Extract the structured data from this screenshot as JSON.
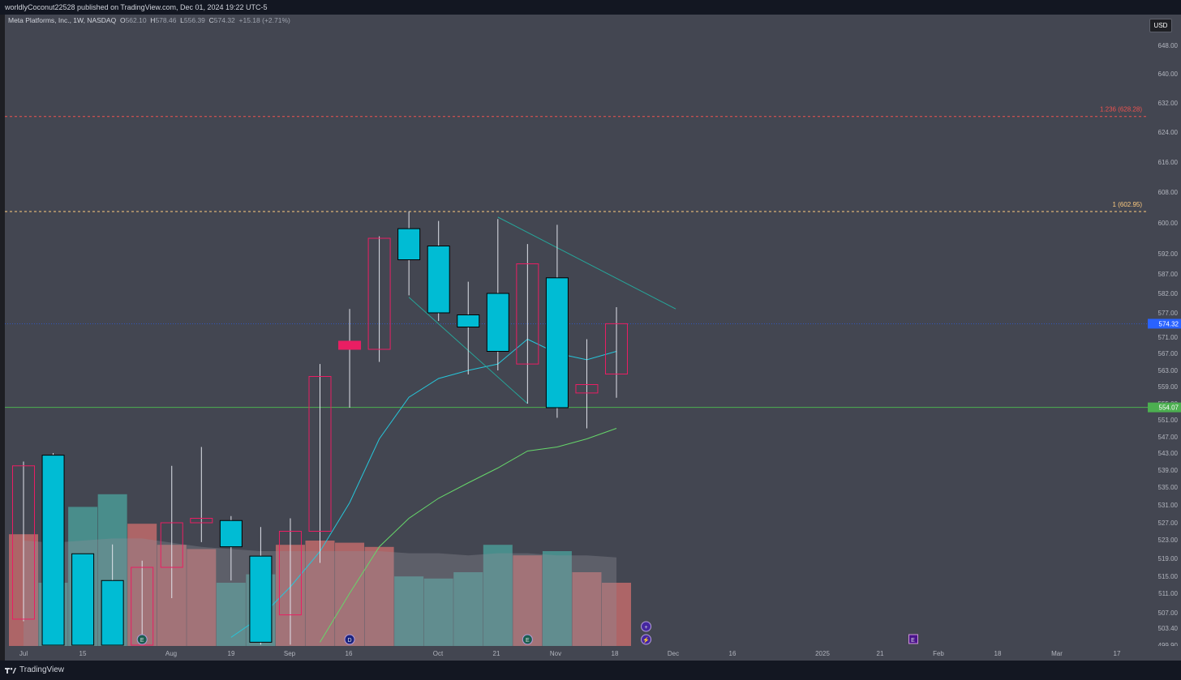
{
  "header": {
    "publish_line": "worldlyCoconut22528 published on TradingView.com, Dec 01, 2024 19:22 UTC-5"
  },
  "legend": {
    "symbol": "Meta Platforms, Inc., 1W, NASDAQ",
    "o_label": "O",
    "o_value": "562.10",
    "h_label": "H",
    "h_value": "578.46",
    "l_label": "L",
    "l_value": "556.39",
    "c_label": "C",
    "c_value": "574.32",
    "change": "+15.18 (+2.71%)"
  },
  "axis": {
    "currency": "USD"
  },
  "footer": {
    "brand": "TradingView"
  },
  "colors": {
    "background": "#434651",
    "bull_candle": "#00bcd4",
    "bear_candle": "#e91e63",
    "bull_volume": "#4a9a95",
    "bear_volume": "#c06b6b",
    "ema_fast": "#26c6da",
    "ema_slow": "#66d66a",
    "support_line": "#4caf50",
    "fib_1": "#ffcc80",
    "fib_1236": "#ef5350",
    "current_price": "#2962ff"
  },
  "chart_data": {
    "type": "candlestick",
    "title": "Meta Platforms, Inc., 1W, NASDAQ",
    "price_axis": {
      "ticks": [
        "648.00",
        "640.00",
        "632.00",
        "624.00",
        "616.00",
        "608.00",
        "600.00",
        "592.00",
        "587.00",
        "582.00",
        "577.00",
        "571.00",
        "567.00",
        "563.00",
        "559.00",
        "555.00",
        "551.00",
        "547.00",
        "543.00",
        "539.00",
        "535.00",
        "531.00",
        "527.00",
        "523.00",
        "519.00",
        "515.00",
        "511.00",
        "507.00",
        "503.40",
        "499.90"
      ]
    },
    "time_axis": {
      "ticks": [
        "Jul",
        "15",
        "Aug",
        "19",
        "Sep",
        "16",
        "Oct",
        "21",
        "Nov",
        "18",
        "Dec",
        "16",
        "2025",
        "21",
        "Feb",
        "18",
        "Mar",
        "17"
      ]
    },
    "candles": [
      {
        "bull": false,
        "open": 540.0,
        "high": 541.0,
        "low": 505.0,
        "close": 505.5
      },
      {
        "bull": true,
        "open": 499.9,
        "high": 543.0,
        "low": 499.9,
        "close": 542.5
      },
      {
        "bull": true,
        "open": 520.0,
        "high": 519.0,
        "low": 499.9,
        "close": 499.9
      },
      {
        "bull": true,
        "open": 514.0,
        "high": 522.0,
        "low": 499.9,
        "close": 499.9
      },
      {
        "bull": false,
        "open": 517.0,
        "high": 518.5,
        "low": 499.9,
        "close": 499.9
      },
      {
        "bull": false,
        "open": 527.0,
        "high": 540.0,
        "low": 510.0,
        "close": 517.0
      },
      {
        "bull": false,
        "open": 528.0,
        "high": 544.5,
        "low": 522.5,
        "close": 527.0
      },
      {
        "bull": true,
        "open": 521.5,
        "high": 528.5,
        "low": 514.0,
        "close": 527.5
      },
      {
        "bull": true,
        "open": 500.5,
        "high": 526.0,
        "low": 500.0,
        "close": 519.5
      },
      {
        "bull": false,
        "open": 525.0,
        "high": 528.0,
        "low": 500.0,
        "close": 506.5
      },
      {
        "bull": false,
        "open": 561.5,
        "high": 564.5,
        "low": 518.0,
        "close": 525.0
      },
      {
        "bull": false,
        "open": 570.0,
        "high": 578.0,
        "low": 554.0,
        "close": 568.0
      },
      {
        "bull": false,
        "open": 596.0,
        "high": 596.5,
        "low": 565.0,
        "close": 568.0
      },
      {
        "bull": true,
        "open": 590.5,
        "high": 603.0,
        "low": 581.5,
        "close": 598.5
      },
      {
        "bull": true,
        "open": 577.0,
        "high": 600.5,
        "low": 575.0,
        "close": 594.0
      },
      {
        "bull": true,
        "open": 573.5,
        "high": 585.0,
        "low": 562.0,
        "close": 576.5
      },
      {
        "bull": true,
        "open": 567.5,
        "high": 601.0,
        "low": 563.0,
        "close": 582.0
      },
      {
        "bull": false,
        "open": 564.5,
        "high": 594.5,
        "low": 555.0,
        "close": 589.5
      },
      {
        "bull": true,
        "open": 554.0,
        "high": 599.5,
        "low": 551.5,
        "close": 586.0
      },
      {
        "bull": false,
        "open": 557.5,
        "high": 570.5,
        "low": 549.0,
        "close": 559.5
      },
      {
        "bull": false,
        "open": 562.1,
        "high": 578.46,
        "low": 556.39,
        "close": 574.32
      }
    ],
    "ema_fast": [
      null,
      null,
      null,
      null,
      null,
      null,
      null,
      501.5,
      506.0,
      512.5,
      520.5,
      531.5,
      546.5,
      556.5,
      561.0,
      563.0,
      564.5,
      570.5,
      567.0,
      565.5,
      567.5
    ],
    "ema_slow": [
      null,
      null,
      null,
      null,
      null,
      null,
      null,
      null,
      null,
      null,
      500.5,
      511.0,
      521.5,
      528.0,
      532.5,
      536.0,
      539.5,
      543.5,
      544.5,
      546.5,
      549.0
    ],
    "volume_relative": [
      0.53,
      0.3,
      0.66,
      0.72,
      0.58,
      0.48,
      0.46,
      0.3,
      0.34,
      0.48,
      0.5,
      0.49,
      0.47,
      0.33,
      0.32,
      0.35,
      0.48,
      0.43,
      0.45,
      0.35,
      0.3
    ],
    "volume_ma_relative": [
      0.5,
      0.49,
      0.5,
      0.51,
      0.51,
      0.49,
      0.47,
      0.46,
      0.45,
      0.45,
      0.45,
      0.45,
      0.45,
      0.44,
      0.44,
      0.43,
      0.44,
      0.44,
      0.43,
      0.43,
      0.42
    ],
    "lines": [
      {
        "label": "1 (602.95)",
        "price": 602.95
      },
      {
        "label": "1.236 (628.28)",
        "price": 628.28
      },
      {
        "label": "554.07",
        "price": 554.07
      },
      {
        "label": "META",
        "price": 574.32,
        "value": "574.32"
      }
    ],
    "trendlines": [
      {
        "from_index": 16,
        "from_price": 601.5,
        "to_index": 22,
        "to_price": 578.0
      },
      {
        "from_index": 13,
        "from_price": 581.0,
        "to_index": 17,
        "to_price": 555.0
      }
    ],
    "event_markers": [
      {
        "index": 4,
        "symbol": "E"
      },
      {
        "index": 11,
        "symbol": "D"
      },
      {
        "index": 17,
        "symbol": "E"
      },
      {
        "index": 21,
        "symbol": "+"
      },
      {
        "index": 21,
        "symbol": "⚡"
      },
      {
        "index": 30,
        "symbol": "E"
      }
    ]
  }
}
